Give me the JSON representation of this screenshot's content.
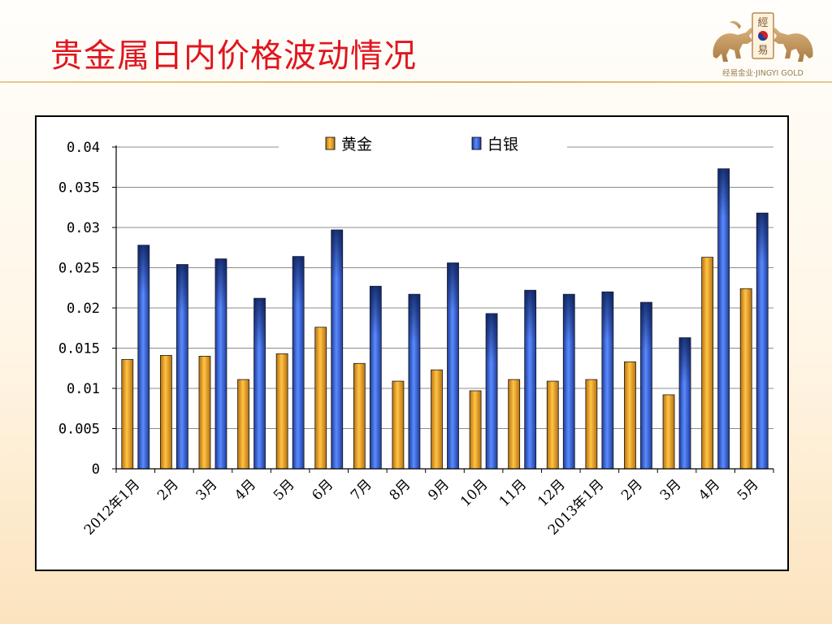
{
  "slide": {
    "title": "贵金属日内价格波动情况",
    "logo_text": "經易",
    "logo_caption": "经易金业·JINGYI GOLD"
  },
  "colors": {
    "title": "#e0161e",
    "gold_bar": "#f2a21c",
    "silver_bar": "#2f5fe0",
    "bar_edge": "#1a1a1a"
  },
  "chart_data": {
    "type": "bar",
    "categories": [
      "2012年1月",
      "2月",
      "3月",
      "4月",
      "5月",
      "6月",
      "7月",
      "8月",
      "9月",
      "10月",
      "11月",
      "12月",
      "2013年1月",
      "2月",
      "3月",
      "4月",
      "5月"
    ],
    "series": [
      {
        "name": "黄金",
        "values": [
          0.0136,
          0.0141,
          0.014,
          0.0111,
          0.0143,
          0.0176,
          0.0131,
          0.0109,
          0.0123,
          0.0097,
          0.0111,
          0.0109,
          0.0111,
          0.0133,
          0.0092,
          0.0263,
          0.0224
        ]
      },
      {
        "name": "白银",
        "values": [
          0.0278,
          0.0254,
          0.0261,
          0.0212,
          0.0264,
          0.0297,
          0.0227,
          0.0217,
          0.0256,
          0.0193,
          0.0222,
          0.0217,
          0.022,
          0.0207,
          0.0163,
          0.0373,
          0.0318
        ]
      }
    ],
    "yticks": [
      "0",
      "0.005",
      "0.01",
      "0.015",
      "0.02",
      "0.025",
      "0.03",
      "0.035",
      "0.04"
    ],
    "ylim": [
      0,
      0.04
    ],
    "grid": true,
    "legend_position": "top-center",
    "title": "",
    "xlabel": "",
    "ylabel": ""
  }
}
